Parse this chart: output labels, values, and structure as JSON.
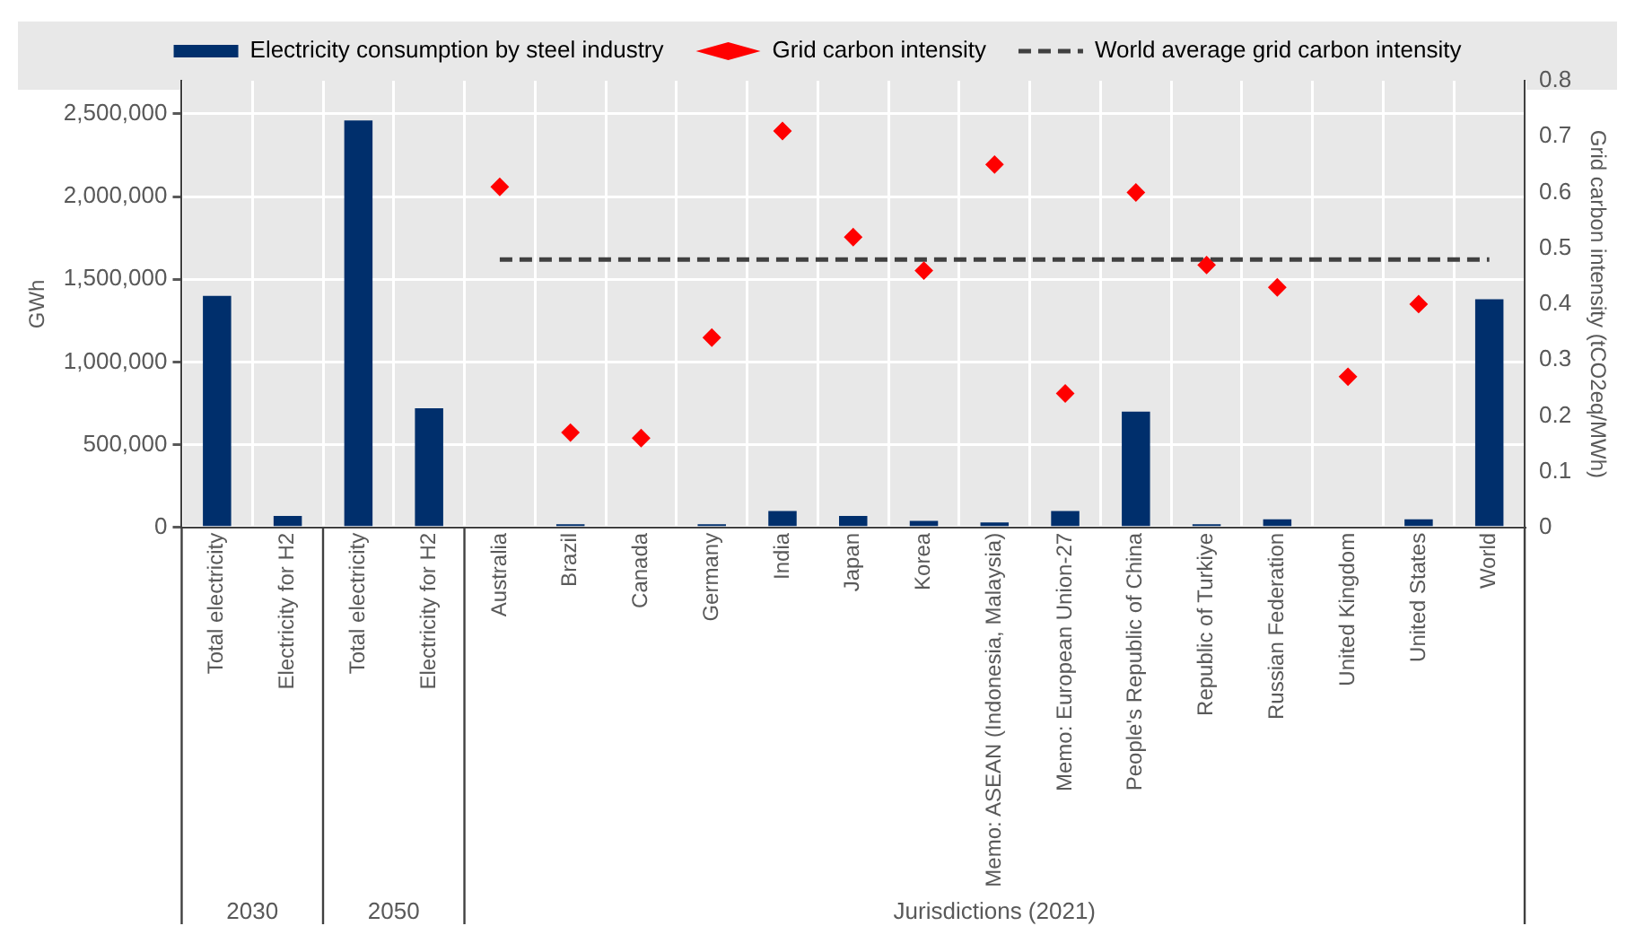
{
  "chart_data": {
    "type": "bar",
    "categories": [
      "Total electricity",
      "Electricity for H2",
      "Total electricity",
      "Electricity for H2",
      "Australia",
      "Brazil",
      "Canada",
      "Germany",
      "India",
      "Japan",
      "Korea",
      "Memo: ASEAN (Indonesia, Malaysia)",
      "Memo: European Union-27",
      "People's Republic of China",
      "Republic of Turkiye",
      "Russian Federation",
      "United Kingdom",
      "United States",
      "World"
    ],
    "series": [
      {
        "name": "Electricity consumption by steel industry",
        "color": "#002f6c",
        "values": [
          1400000,
          70000,
          2460000,
          720000,
          0,
          20000,
          0,
          20000,
          100000,
          70000,
          40000,
          30000,
          100000,
          700000,
          20000,
          50000,
          0,
          50000,
          1380000
        ]
      },
      {
        "name": "Grid carbon intensity",
        "type": "scatter",
        "axis": "y2",
        "marker": "diamond",
        "color": "#ff0000",
        "values": [
          null,
          null,
          null,
          null,
          0.61,
          0.17,
          0.16,
          0.34,
          0.71,
          0.52,
          0.46,
          0.65,
          0.24,
          0.6,
          0.47,
          0.43,
          0.27,
          0.4,
          null
        ]
      },
      {
        "name": "World average grid carbon intensity",
        "type": "line",
        "axis": "y2",
        "marker": "none",
        "line_style": "dashed",
        "color": "#404040",
        "values": [
          null,
          null,
          null,
          null,
          0.48,
          0.48,
          0.48,
          0.48,
          0.48,
          0.48,
          0.48,
          0.48,
          0.48,
          0.48,
          0.48,
          0.48,
          0.48,
          0.48,
          0.48
        ]
      }
    ],
    "ylabel": "GWh",
    "y2label": "Grid carbon intensity (tCO2eq/MWh)",
    "ylim": [
      0,
      2700000
    ],
    "yticks": [
      0,
      {
        "value": 500000,
        "label": "500,000"
      },
      {
        "value": 1000000,
        "label": "1,000,000"
      },
      {
        "value": 1500000,
        "label": "1,500,000"
      },
      {
        "value": 2000000,
        "label": "2,000,000"
      },
      {
        "value": 2500000,
        "label": "2,500,000"
      }
    ],
    "y2lim": [
      0,
      0.8
    ],
    "y2ticks": [
      0,
      0.1,
      0.2,
      0.3,
      0.4,
      0.5,
      0.6,
      0.7,
      0.8
    ],
    "grid": true,
    "legend": "top",
    "annotations": [
      "2030",
      "2050",
      "Jurisdictions (2021)"
    ]
  }
}
